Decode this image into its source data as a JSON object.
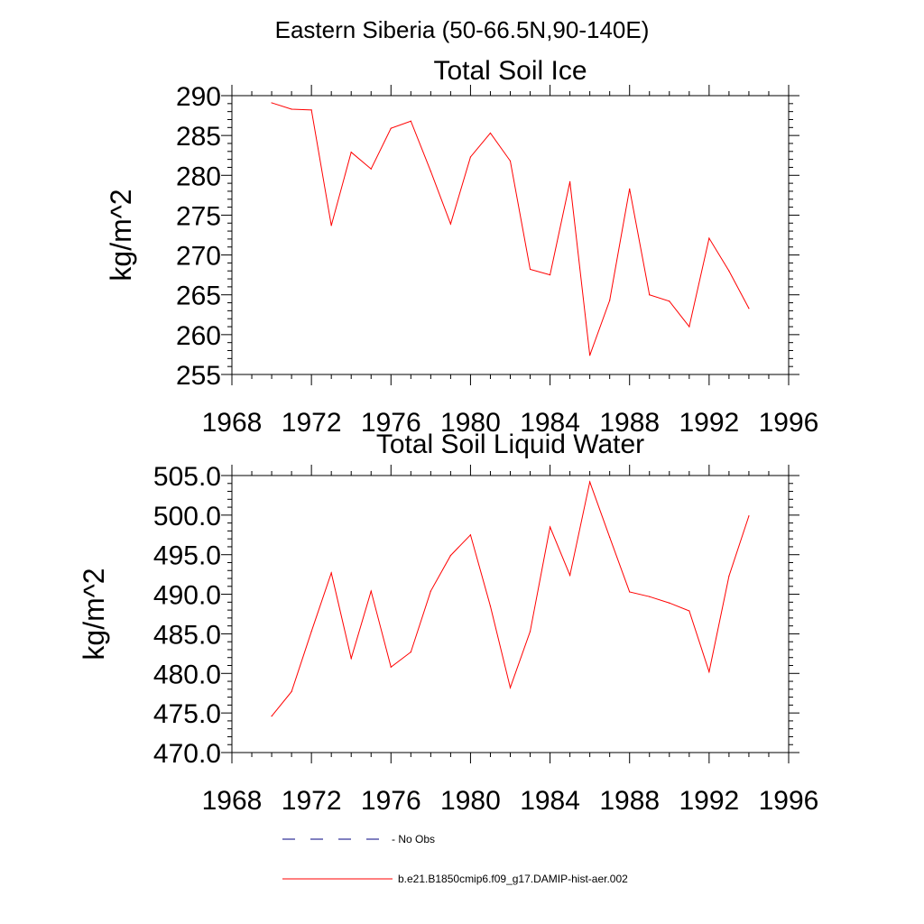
{
  "figure": {
    "title": "Eastern Siberia (50-66.5N,90-140E)"
  },
  "chart_data": [
    {
      "type": "line",
      "title": "Total Soil Ice",
      "xlabel": "",
      "ylabel": "kg/m^2",
      "xlim": [
        1968,
        1996
      ],
      "ylim": [
        255,
        290
      ],
      "xticks": [
        "1968",
        "1972",
        "1976",
        "1980",
        "1984",
        "1988",
        "1992",
        "1996"
      ],
      "yticks": [
        "255",
        "260",
        "265",
        "270",
        "275",
        "280",
        "285",
        "290"
      ],
      "x": [
        1970,
        1971,
        1972,
        1973,
        1974,
        1975,
        1976,
        1977,
        1978,
        1979,
        1980,
        1981,
        1982,
        1983,
        1984,
        1985,
        1986,
        1987,
        1988,
        1989,
        1990,
        1991,
        1992,
        1993,
        1994
      ],
      "series": [
        {
          "name": "b.e21.B1850cmip6.f09_g17.DAMIP-hist-aer.002",
          "color": "#ff0000",
          "values": [
            289.1,
            288.3,
            288.2,
            273.7,
            282.9,
            280.8,
            285.9,
            286.8,
            280.5,
            273.9,
            282.3,
            285.3,
            281.8,
            268.2,
            267.5,
            279.2,
            257.4,
            264.3,
            278.3,
            265.0,
            264.2,
            261.0,
            272.1,
            268.0,
            263.3
          ]
        }
      ],
      "grid": false
    },
    {
      "type": "line",
      "title": "Total Soil Liquid Water",
      "xlabel": "",
      "ylabel": "kg/m^2",
      "xlim": [
        1968,
        1996
      ],
      "ylim": [
        470,
        505
      ],
      "xticks": [
        "1968",
        "1972",
        "1976",
        "1980",
        "1984",
        "1988",
        "1992",
        "1996"
      ],
      "yticks": [
        "470.0",
        "475.0",
        "480.0",
        "485.0",
        "490.0",
        "495.0",
        "500.0",
        "505.0"
      ],
      "x": [
        1970,
        1971,
        1972,
        1973,
        1974,
        1975,
        1976,
        1977,
        1978,
        1979,
        1980,
        1981,
        1982,
        1983,
        1984,
        1985,
        1986,
        1987,
        1988,
        1989,
        1990,
        1991,
        1992,
        1993,
        1994
      ],
      "series": [
        {
          "name": "b.e21.B1850cmip6.f09_g17.DAMIP-hist-aer.002",
          "color": "#ff0000",
          "values": [
            474.6,
            477.7,
            485.3,
            492.7,
            481.9,
            490.4,
            480.8,
            482.7,
            490.4,
            494.9,
            497.5,
            488.5,
            478.2,
            485.3,
            498.5,
            492.4,
            504.2,
            497.2,
            490.3,
            489.7,
            488.9,
            487.9,
            480.2,
            492.3,
            499.9
          ]
        }
      ],
      "grid": false
    }
  ],
  "legend": {
    "placement": "bottom-center",
    "items": [
      {
        "label": "No Obs",
        "color": "#000080",
        "style": "dashed"
      },
      {
        "label": "b.e21.B1850cmip6.f09_g17.DAMIP-hist-aer.002",
        "color": "#ff0000",
        "style": "solid"
      }
    ]
  }
}
